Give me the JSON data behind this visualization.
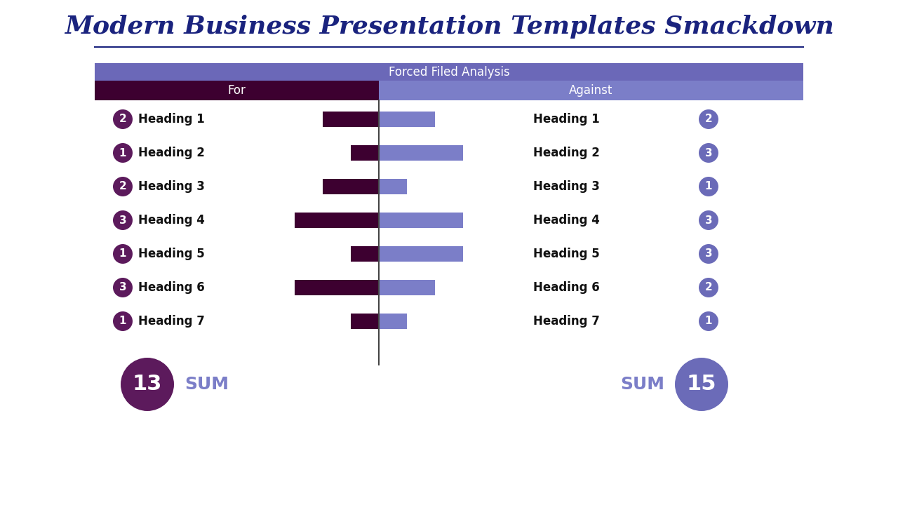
{
  "title": "Modern Business Presentation Templates Smackdown",
  "subtitle": "Forced Filed Analysis",
  "col_for": "For",
  "col_against": "Against",
  "headings": [
    "Heading 1",
    "Heading 2",
    "Heading 3",
    "Heading 4",
    "Heading 5",
    "Heading 6",
    "Heading 7"
  ],
  "for_values": [
    2,
    1,
    2,
    3,
    1,
    3,
    1
  ],
  "against_values": [
    2,
    3,
    1,
    3,
    3,
    2,
    1
  ],
  "for_sum": 13,
  "against_sum": 15,
  "for_bar_color": "#3D0030",
  "against_bar_color": "#7B7EC8",
  "header_for_color": "#3D0030",
  "header_against_color": "#7B7EC8",
  "subheader_color": "#6B68B8",
  "title_color": "#1A237E",
  "circle_color_for": "#5C1A5C",
  "circle_color_against": "#6B6BB8",
  "sum_circle_for_color": "#5C1A5C",
  "sum_circle_against_color": "#6B6BB8",
  "sum_text_color": "#7B7EC8",
  "background_color": "#FFFFFF",
  "title_fontsize": 26,
  "label_fontsize": 12,
  "header_fontsize": 12
}
